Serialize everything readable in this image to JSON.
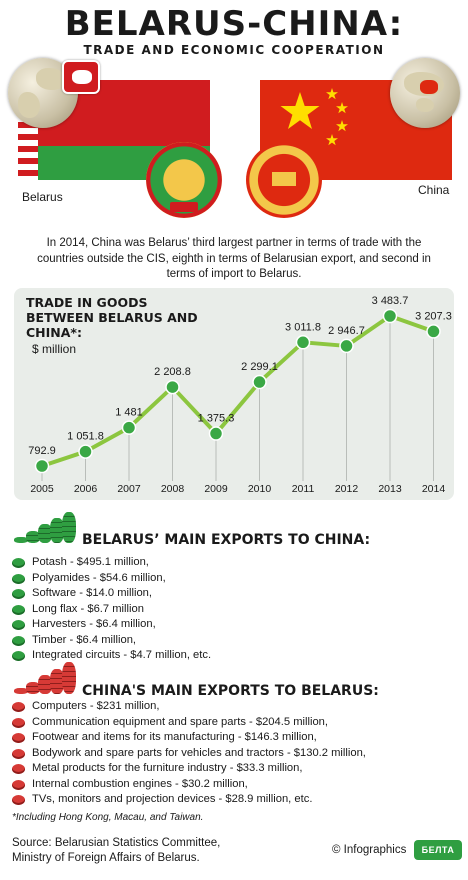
{
  "header": {
    "title": "BELARUS-CHINA:",
    "subtitle": "TRADE AND ECONOMIC COOPERATION"
  },
  "countries": {
    "left": "Belarus",
    "right": "China"
  },
  "intro": "In 2014, China was Belarus’ third largest partner in terms of trade with the countries outside the CIS, eighth in terms of Belarusian export, and second in terms of import to Belarus.",
  "chart_data": {
    "type": "line",
    "title": "TRADE IN GOODS BETWEEN BELARUS AND CHINA*:",
    "ylabel": "$ million",
    "xlabel": "",
    "categories": [
      "2005",
      "2006",
      "2007",
      "2008",
      "2009",
      "2010",
      "2011",
      "2012",
      "2013",
      "2014"
    ],
    "values": [
      792.9,
      1051.8,
      1481,
      2208.8,
      1375.3,
      2299.1,
      3011.8,
      2946.7,
      3483.7,
      3207.3
    ],
    "value_labels": [
      "792.9",
      "1 051.8",
      "1 481",
      "2 208.8",
      "1 375.3",
      "2 299.1",
      "3 011.8",
      "2 946.7",
      "3 483.7",
      "3 207.3"
    ],
    "ylim": [
      792.9,
      3483.7
    ],
    "grid": false,
    "line_color": "#8cc63f",
    "marker_color": "#3aa845"
  },
  "exports_by": {
    "title": "BELARUS’  MAIN EXPORTS TO CHINA:",
    "items": [
      "Potash - $495.1 million,",
      "Polyamides - $54.6 million,",
      "Software - $14.0 million,",
      "Long flax - $6.7 million",
      "Harvesters - $6.4 million,",
      "Timber - $6.4 million,",
      "Integrated circuits - $4.7 million, etc."
    ]
  },
  "exports_cn": {
    "title": "CHINA'S MAIN EXPORTS TO BELARUS:",
    "items": [
      "Computers - $231 million,",
      "Communication equipment and spare parts - $204.5 million,",
      "Footwear and items for its manufacturing - $146.3 million,",
      "Bodywork and spare parts for vehicles and tractors - $130.2 million,",
      "Metal products for the furniture industry - $33.3 million,",
      "Internal combustion engines - $30.2 million,",
      "TVs, monitors and projection devices - $28.9 million, etc."
    ]
  },
  "footnote": "*Including Hong Kong, Macau, and Taiwan.",
  "source": {
    "line1": "Source: Belarusian Statistics Committee,",
    "line2": "Ministry of Foreign Affairs of Belarus."
  },
  "credit": "© Infographics",
  "logo_text": "БЕЛТА",
  "colors": {
    "belarus_red": "#d01c1f",
    "belarus_green": "#2f9e41",
    "china_red": "#de2910",
    "china_star": "#ffde00"
  }
}
